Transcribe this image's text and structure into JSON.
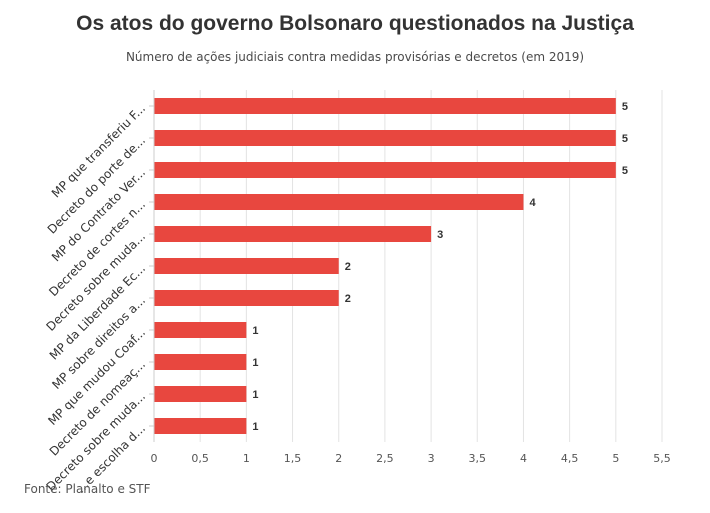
{
  "title": "Os atos do governo Bolsonaro questionados na Justiça",
  "subtitle": "Número de ações judiciais contra medidas provisórias e decretos (em 2019)",
  "source": "Fonte: Planalto e STF",
  "colors": {
    "bar": "#e8473f",
    "grid": "#e3e3e3",
    "text": "#333333"
  },
  "chart_data": {
    "type": "bar",
    "orientation": "horizontal",
    "categories": [
      "MP que transferiu F...",
      "Decreto do porte de...",
      "MP do Contrato Ver...",
      "Decreto de cortes n...",
      "Decreto sobre muda...",
      "MP da Liberdade Ec...",
      "MP sobre direitos a...",
      "MP que mudou Coaf...",
      "Decreto de nomeaç...",
      "Decreto sobre muda...",
      "...e escolha d..."
    ],
    "values": [
      5,
      5,
      5,
      4,
      3,
      2,
      2,
      1,
      1,
      1,
      1
    ],
    "data_labels": [
      "5",
      "5",
      "5",
      "4",
      "3",
      "2",
      "2",
      "1",
      "1",
      "1",
      "1"
    ],
    "xlim": [
      0,
      5.5
    ],
    "xticks": [
      "0",
      "0,5",
      "1",
      "1,5",
      "2",
      "2,5",
      "3",
      "3,5",
      "4",
      "4,5",
      "5",
      "5,5"
    ],
    "grid": true,
    "legend": "none"
  }
}
